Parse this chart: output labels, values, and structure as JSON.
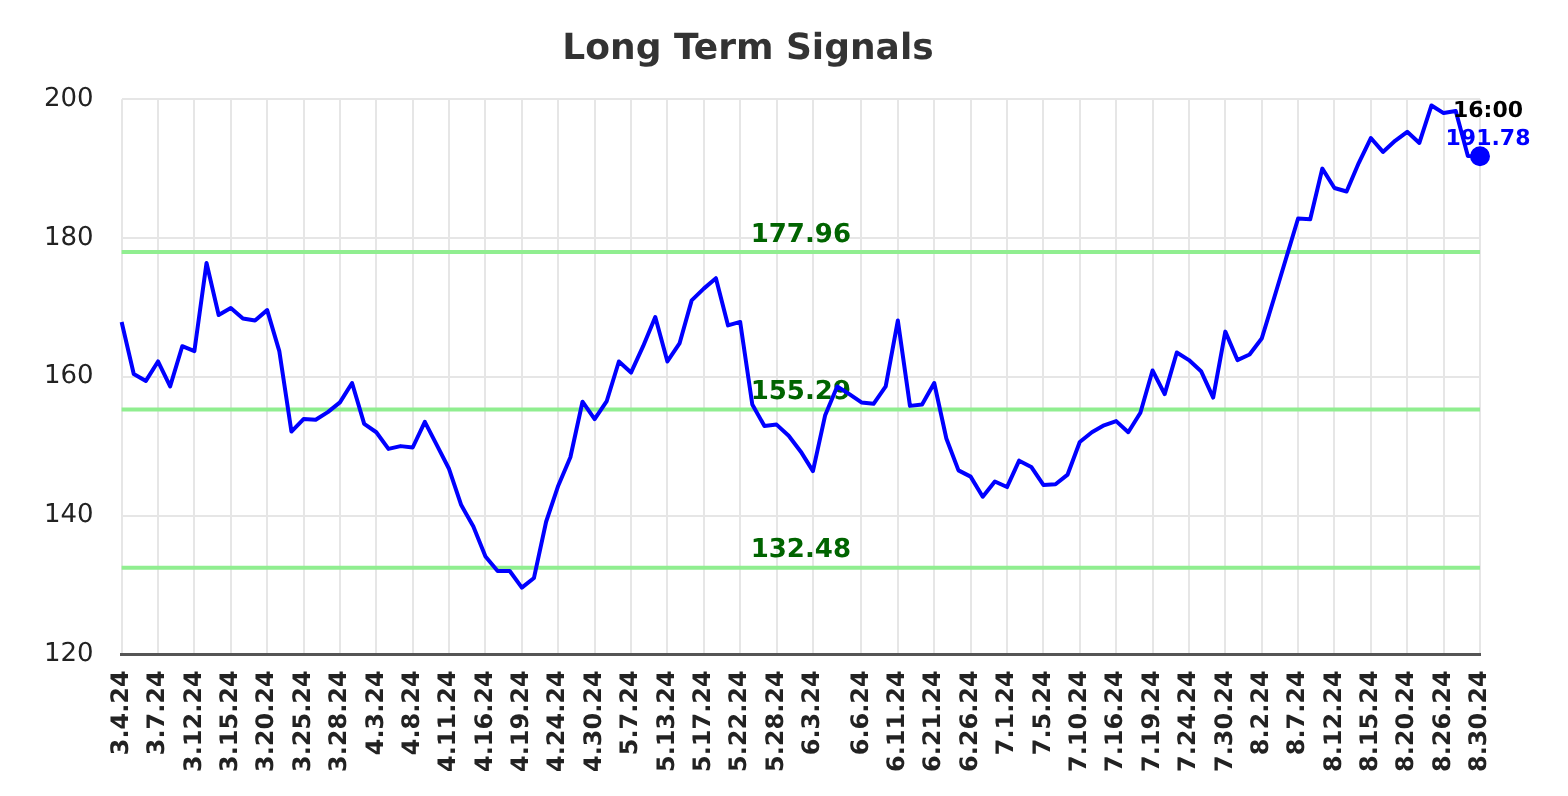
{
  "chart_data": {
    "type": "line",
    "title": "Long Term Signals",
    "categories": [
      "3.4.24",
      null,
      null,
      "3.7.24",
      null,
      null,
      "3.12.24",
      null,
      null,
      "3.15.24",
      null,
      null,
      "3.20.24",
      null,
      null,
      "3.25.24",
      null,
      null,
      "3.28.24",
      null,
      null,
      "4.3.24",
      null,
      null,
      "4.8.24",
      null,
      null,
      "4.11.24",
      null,
      null,
      "4.16.24",
      null,
      null,
      "4.19.24",
      null,
      null,
      "4.24.24",
      null,
      null,
      "4.30.24",
      null,
      null,
      "5.7.24",
      null,
      null,
      "5.13.24",
      null,
      null,
      "5.17.24",
      null,
      null,
      "5.22.24",
      null,
      null,
      "5.28.24",
      null,
      null,
      "6.3.24",
      null,
      null,
      null,
      "6.6.24",
      null,
      null,
      "6.11.24",
      null,
      null,
      "6.21.24",
      null,
      null,
      "6.26.24",
      null,
      null,
      "7.1.24",
      null,
      null,
      "7.5.24",
      null,
      null,
      "7.10.24",
      null,
      null,
      "7.16.24",
      null,
      null,
      "7.19.24",
      null,
      null,
      "7.24.24",
      null,
      null,
      "7.30.24",
      null,
      null,
      "8.2.24",
      null,
      null,
      "8.7.24",
      null,
      null,
      "8.12.24",
      null,
      null,
      "8.15.24",
      null,
      null,
      "8.20.24",
      null,
      null,
      "8.26.24",
      null,
      null,
      "8.30.24"
    ],
    "series": [
      {
        "color": "#0000ff",
        "values": [
          167.9,
          160.4,
          159.4,
          162.2,
          158.6,
          164.4,
          163.7,
          176.4,
          168.9,
          169.9,
          168.4,
          168.1,
          169.6,
          163.7,
          152.1,
          153.9,
          153.8,
          154.9,
          156.3,
          159.1,
          153.2,
          152.0,
          149.6,
          150.0,
          149.8,
          153.5,
          150.1,
          146.7,
          141.5,
          138.4,
          134.1,
          132.0,
          132.0,
          129.6,
          131.0,
          139.1,
          144.3,
          148.4,
          156.4,
          153.9,
          156.5,
          162.2,
          160.6,
          164.4,
          168.6,
          162.2,
          164.8,
          171.0,
          172.7,
          174.2,
          167.4,
          167.9,
          156.0,
          152.9,
          153.1,
          151.5,
          149.2,
          146.4,
          154.4,
          158.6,
          157.5,
          156.3,
          156.1,
          158.6,
          168.1,
          155.8,
          156.0,
          159.1,
          151.1,
          146.5,
          145.6,
          142.7,
          144.9,
          144.1,
          147.9,
          147.0,
          144.4,
          144.5,
          145.9,
          150.6,
          152.0,
          153.0,
          153.6,
          152.0,
          154.8,
          160.9,
          157.5,
          163.5,
          162.4,
          160.8,
          157.0,
          166.5,
          162.4,
          163.2,
          165.5,
          171.2,
          177.0,
          182.8,
          182.7,
          190.0,
          187.2,
          186.7,
          190.8,
          194.4,
          192.4,
          194.0,
          195.3,
          193.7,
          199.1,
          198.0,
          198.3,
          191.8,
          191.78
        ],
        "value_labels": [
          null,
          null,
          null,
          null,
          null,
          null,
          null,
          null,
          null,
          null,
          null,
          null,
          null,
          null,
          null,
          null,
          null,
          null,
          null,
          null,
          null,
          null,
          null,
          null,
          null,
          null,
          null,
          null,
          null,
          null,
          null,
          null,
          null,
          null,
          null,
          null,
          null,
          null,
          null,
          null,
          null,
          null,
          null,
          null,
          null,
          null,
          null,
          null,
          null,
          null,
          null,
          null,
          null,
          null,
          null,
          null,
          null,
          null,
          null,
          null,
          null,
          null,
          null,
          null,
          null,
          null,
          null,
          null,
          null,
          null,
          null,
          null,
          null,
          null,
          null,
          null,
          null,
          null,
          null,
          null,
          null,
          null,
          null,
          null,
          null,
          null,
          null,
          null,
          null,
          null,
          null,
          null,
          null,
          null,
          null,
          null,
          null,
          null,
          null,
          null,
          null,
          null,
          null,
          null,
          null,
          null,
          null,
          null,
          null,
          null,
          null,
          null,
          "191.78"
        ]
      }
    ],
    "ylim": [
      120,
      200
    ],
    "yticks": [
      120,
      140,
      160,
      180,
      200
    ],
    "grid": true,
    "ref_lines": [
      {
        "axis": "y",
        "value": 177.96,
        "label": "177.96",
        "color": "#90ee90"
      },
      {
        "axis": "y",
        "value": 155.29,
        "label": "155.29",
        "color": "#90ee90"
      },
      {
        "axis": "y",
        "value": 132.48,
        "label": "132.48",
        "color": "#90ee90"
      }
    ],
    "annotations": [
      {
        "text": "16:00",
        "x": "8.30.24",
        "y": 191.78
      }
    ]
  }
}
